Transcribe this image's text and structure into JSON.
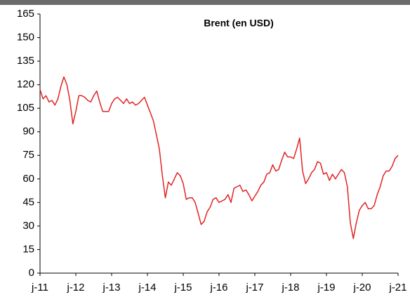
{
  "chart_data": {
    "type": "line",
    "title": "Brent (en USD)",
    "x": [
      "2011-01",
      "2011-02",
      "2011-03",
      "2011-04",
      "2011-05",
      "2011-06",
      "2011-07",
      "2011-08",
      "2011-09",
      "2011-10",
      "2011-11",
      "2011-12",
      "2012-01",
      "2012-02",
      "2012-03",
      "2012-04",
      "2012-05",
      "2012-06",
      "2012-07",
      "2012-08",
      "2012-09",
      "2012-10",
      "2012-11",
      "2012-12",
      "2013-01",
      "2013-02",
      "2013-03",
      "2013-04",
      "2013-05",
      "2013-06",
      "2013-07",
      "2013-08",
      "2013-09",
      "2013-10",
      "2013-11",
      "2013-12",
      "2014-01",
      "2014-02",
      "2014-03",
      "2014-04",
      "2014-05",
      "2014-06",
      "2014-07",
      "2014-08",
      "2014-09",
      "2014-10",
      "2014-11",
      "2014-12",
      "2015-01",
      "2015-02",
      "2015-03",
      "2015-04",
      "2015-05",
      "2015-06",
      "2015-07",
      "2015-08",
      "2015-09",
      "2015-10",
      "2015-11",
      "2015-12",
      "2016-01",
      "2016-02",
      "2016-03",
      "2016-04",
      "2016-05",
      "2016-06",
      "2016-07",
      "2016-08",
      "2016-09",
      "2016-10",
      "2016-11",
      "2016-12",
      "2017-01",
      "2017-02",
      "2017-03",
      "2017-04",
      "2017-05",
      "2017-06",
      "2017-07",
      "2017-08",
      "2017-09",
      "2017-10",
      "2017-11",
      "2017-12",
      "2018-01",
      "2018-02",
      "2018-03",
      "2018-04",
      "2018-05",
      "2018-06",
      "2018-07",
      "2018-08",
      "2018-09",
      "2018-10",
      "2018-11",
      "2018-12",
      "2019-01",
      "2019-02",
      "2019-03",
      "2019-04",
      "2019-05",
      "2019-06",
      "2019-07",
      "2019-08",
      "2019-09",
      "2019-10",
      "2019-11",
      "2019-12",
      "2020-01",
      "2020-02",
      "2020-03",
      "2020-04",
      "2020-05",
      "2020-06",
      "2020-07",
      "2020-08",
      "2020-09",
      "2020-10",
      "2020-11",
      "2020-12",
      "2021-01"
    ],
    "values": [
      117,
      111,
      113,
      109,
      110,
      107,
      111,
      119,
      125,
      120,
      110,
      95,
      103,
      113,
      113,
      112,
      110,
      109,
      113,
      116,
      109,
      103,
      103,
      103,
      108,
      111,
      112,
      110,
      108,
      111,
      108,
      109,
      107,
      108,
      110,
      112,
      107,
      102,
      97,
      88,
      79,
      62,
      48,
      58,
      56,
      60,
      64,
      62,
      57,
      47,
      48,
      48,
      45,
      38,
      31,
      33,
      39,
      42,
      47,
      48,
      45,
      46,
      47,
      50,
      45,
      54,
      55,
      56,
      52,
      53,
      50,
      46,
      49,
      52,
      56,
      58,
      63,
      64,
      69,
      65,
      66,
      72,
      77,
      74,
      74,
      73,
      79,
      86,
      65,
      57,
      60,
      64,
      66,
      71,
      70,
      63,
      64,
      59,
      63,
      60,
      63,
      66,
      64,
      55,
      32,
      22,
      32,
      40,
      43,
      45,
      41,
      41,
      43,
      50,
      55,
      62,
      65,
      65,
      68,
      73,
      75
    ],
    "color": "#e02424",
    "ylim": [
      0,
      165
    ],
    "yticks": [
      0,
      15,
      30,
      45,
      60,
      75,
      90,
      105,
      120,
      135,
      150,
      165
    ],
    "xlim": [
      "2011-01",
      "2021-01"
    ],
    "xticks": [
      {
        "value": "2011-01",
        "label": "j-11"
      },
      {
        "value": "2012-01",
        "label": "j-12"
      },
      {
        "value": "2013-01",
        "label": "j-13"
      },
      {
        "value": "2014-01",
        "label": "j-14"
      },
      {
        "value": "2015-01",
        "label": "j-15"
      },
      {
        "value": "2016-01",
        "label": "j-16"
      },
      {
        "value": "2017-01",
        "label": "j-17"
      },
      {
        "value": "2018-01",
        "label": "j-18"
      },
      {
        "value": "2019-01",
        "label": "j-19"
      },
      {
        "value": "2020-01",
        "label": "j-20"
      },
      {
        "value": "2021-01",
        "label": "j-21"
      }
    ]
  }
}
